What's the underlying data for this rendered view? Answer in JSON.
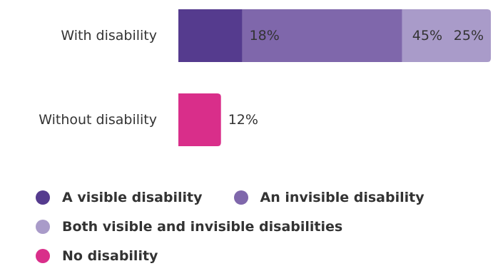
{
  "chart_data": {
    "type": "bar",
    "orientation": "horizontal",
    "stacked": true,
    "categories": [
      "With disability",
      "Without disability"
    ],
    "series": [
      {
        "name": "A visible disability",
        "color": "#553B8E",
        "values": [
          18,
          null
        ],
        "labels": [
          "18%",
          ""
        ]
      },
      {
        "name": "An invisible disability",
        "color": "#7F67AB",
        "values": [
          45,
          null
        ],
        "labels": [
          "45%",
          ""
        ]
      },
      {
        "name": "Both visible and invisible disabilities",
        "color": "#A99BC9",
        "values": [
          25,
          null
        ],
        "labels": [
          "25%",
          ""
        ]
      },
      {
        "name": "No disability",
        "color": "#D92E8A",
        "values": [
          null,
          12
        ],
        "labels": [
          "",
          "12%"
        ]
      }
    ],
    "xlim": [
      0,
      88
    ],
    "grid": false,
    "legend_position": "bottom"
  }
}
